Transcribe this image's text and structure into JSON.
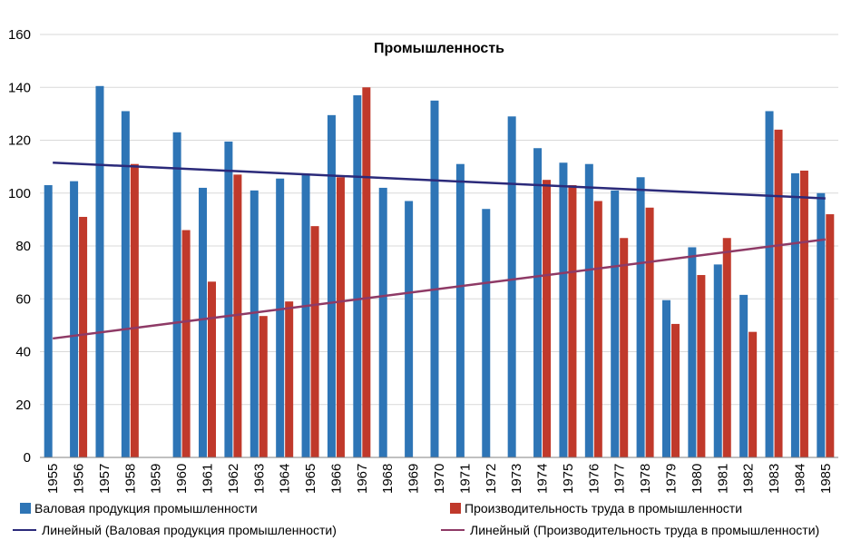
{
  "chart_data": {
    "type": "bar",
    "title": "Промышленность",
    "xlabel": "",
    "ylabel": "",
    "ylim": [
      0,
      160
    ],
    "yticks": [
      0,
      20,
      40,
      60,
      80,
      100,
      120,
      140,
      160
    ],
    "grid": true,
    "legend": "bottom",
    "categories": [
      "1955",
      "1956",
      "1957",
      "1958",
      "1959",
      "1960",
      "1961",
      "1962",
      "1963",
      "1964",
      "1965",
      "1966",
      "1967",
      "1968",
      "1969",
      "1970",
      "1971",
      "1972",
      "1973",
      "1974",
      "1975",
      "1976",
      "1977",
      "1978",
      "1979",
      "1980",
      "1981",
      "1982",
      "1983",
      "1984",
      "1985"
    ],
    "series": [
      {
        "name": "Валовая продукция промышленности",
        "color": "#2e75b6",
        "values": [
          103,
          104.5,
          140.5,
          131,
          null,
          123,
          102,
          119.5,
          101,
          105.5,
          107,
          129.5,
          137,
          102,
          97,
          135,
          111,
          94,
          129,
          117,
          111.5,
          111,
          101,
          106,
          59.5,
          79.5,
          73,
          61.5,
          131,
          107.5,
          100
        ]
      },
      {
        "name": "Производительность труда в промышленности",
        "color": "#c0392b",
        "values": [
          null,
          91,
          null,
          111,
          null,
          86,
          66.5,
          107,
          53.5,
          59,
          87.5,
          106,
          140,
          null,
          null,
          null,
          null,
          null,
          null,
          105,
          103,
          97,
          83,
          94.5,
          50.5,
          69,
          83,
          47.5,
          124,
          108.5,
          92
        ]
      }
    ],
    "trendlines": [
      {
        "name": "Линейный (Валовая продукция промышленности)",
        "color": "#2b2a7a",
        "start": 111.5,
        "end": 98
      },
      {
        "name": "Линейный (Производительность труда в промышленности)",
        "color": "#8e3a66",
        "start": 45,
        "end": 82.5
      }
    ]
  }
}
